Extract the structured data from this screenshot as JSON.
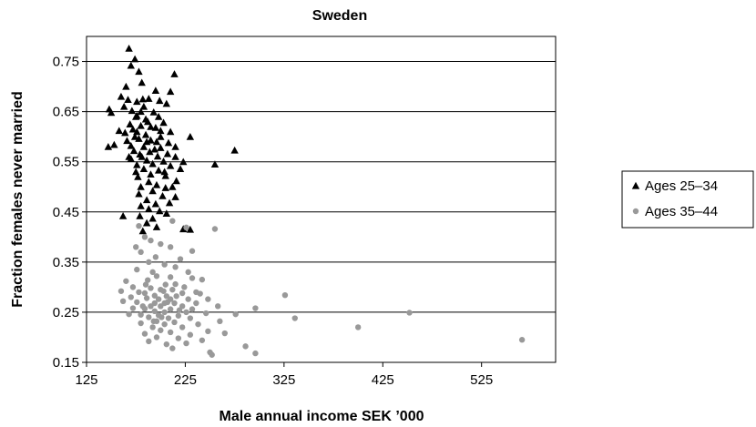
{
  "chart_data": {
    "type": "scatter",
    "title": "Sweden",
    "xlabel": "Male annual income SEK ’000",
    "ylabel": "Fraction females never married",
    "xlim": [
      125,
      600
    ],
    "ylim": [
      0.15,
      0.8
    ],
    "x_ticks": [
      125,
      225,
      325,
      425,
      525
    ],
    "x_tick_labels": [
      "125",
      "225",
      "325",
      "425",
      "525"
    ],
    "y_ticks": [
      0.15,
      0.25,
      0.35,
      0.45,
      0.55,
      0.65,
      0.75
    ],
    "y_tick_labels": [
      "0.15",
      "0.25",
      "0.35",
      "0.45",
      "0.55",
      "0.65",
      "0.75"
    ],
    "grid": "horizontal",
    "legend_position": "right",
    "series": [
      {
        "name": "Ages 25–34",
        "marker": "triangle",
        "color": "#000000",
        "points": [
          [
            168,
            0.776
          ],
          [
            174,
            0.755
          ],
          [
            170,
            0.742
          ],
          [
            178,
            0.73
          ],
          [
            214,
            0.725
          ],
          [
            165,
            0.7
          ],
          [
            181,
            0.708
          ],
          [
            195,
            0.692
          ],
          [
            210,
            0.69
          ],
          [
            160,
            0.68
          ],
          [
            167,
            0.674
          ],
          [
            176,
            0.67
          ],
          [
            188,
            0.676
          ],
          [
            199,
            0.672
          ],
          [
            206,
            0.666
          ],
          [
            183,
            0.66
          ],
          [
            171,
            0.652
          ],
          [
            193,
            0.649
          ],
          [
            148,
            0.655
          ],
          [
            150,
            0.648
          ],
          [
            176,
            0.642
          ],
          [
            198,
            0.64
          ],
          [
            187,
            0.63
          ],
          [
            169,
            0.625
          ],
          [
            203,
            0.628
          ],
          [
            180,
            0.622
          ],
          [
            195,
            0.618
          ],
          [
            158,
            0.612
          ],
          [
            164,
            0.608
          ],
          [
            185,
            0.604
          ],
          [
            174,
            0.6
          ],
          [
            200,
            0.6
          ],
          [
            210,
            0.61
          ],
          [
            230,
            0.6
          ],
          [
            166,
            0.592
          ],
          [
            178,
            0.596
          ],
          [
            190,
            0.593
          ],
          [
            196,
            0.59
          ],
          [
            208,
            0.588
          ],
          [
            153,
            0.584
          ],
          [
            147,
            0.58
          ],
          [
            170,
            0.582
          ],
          [
            183,
            0.58
          ],
          [
            200,
            0.578
          ],
          [
            215,
            0.58
          ],
          [
            275,
            0.573
          ],
          [
            173,
            0.572
          ],
          [
            189,
            0.57
          ],
          [
            207,
            0.566
          ],
          [
            179,
            0.565
          ],
          [
            197,
            0.561
          ],
          [
            215,
            0.56
          ],
          [
            170,
            0.556
          ],
          [
            186,
            0.553
          ],
          [
            203,
            0.551
          ],
          [
            223,
            0.55
          ],
          [
            192,
            0.546
          ],
          [
            176,
            0.544
          ],
          [
            210,
            0.542
          ],
          [
            255,
            0.545
          ],
          [
            183,
            0.536
          ],
          [
            198,
            0.533
          ],
          [
            220,
            0.536
          ],
          [
            190,
            0.525
          ],
          [
            205,
            0.522
          ],
          [
            177,
            0.52
          ],
          [
            188,
            0.51
          ],
          [
            216,
            0.512
          ],
          [
            196,
            0.504
          ],
          [
            180,
            0.5
          ],
          [
            205,
            0.498
          ],
          [
            192,
            0.492
          ],
          [
            178,
            0.486
          ],
          [
            202,
            0.482
          ],
          [
            215,
            0.48
          ],
          [
            186,
            0.474
          ],
          [
            195,
            0.466
          ],
          [
            209,
            0.468
          ],
          [
            180,
            0.462
          ],
          [
            188,
            0.456
          ],
          [
            199,
            0.452
          ],
          [
            206,
            0.447
          ],
          [
            162,
            0.442
          ],
          [
            179,
            0.442
          ],
          [
            192,
            0.437
          ],
          [
            186,
            0.428
          ],
          [
            196,
            0.42
          ],
          [
            223,
            0.416
          ],
          [
            182,
            0.412
          ],
          [
            230,
            0.415
          ],
          [
            175,
            0.64
          ],
          [
            180,
            0.65
          ],
          [
            185,
            0.635
          ],
          [
            190,
            0.62
          ],
          [
            172,
            0.615
          ],
          [
            200,
            0.612
          ],
          [
            186,
            0.59
          ],
          [
            194,
            0.575
          ],
          [
            181,
            0.56
          ],
          [
            204,
            0.53
          ],
          [
            212,
            0.5
          ],
          [
            175,
            0.53
          ],
          [
            168,
            0.56
          ],
          [
            176,
            0.61
          ],
          [
            182,
            0.675
          ],
          [
            163,
            0.66
          ]
        ]
      },
      {
        "name": "Ages 35–44",
        "marker": "circle",
        "color": "#999999",
        "points": [
          [
            178,
            0.422
          ],
          [
            212,
            0.432
          ],
          [
            255,
            0.416
          ],
          [
            226,
            0.419
          ],
          [
            184,
            0.4
          ],
          [
            190,
            0.393
          ],
          [
            200,
            0.386
          ],
          [
            210,
            0.38
          ],
          [
            232,
            0.372
          ],
          [
            175,
            0.38
          ],
          [
            180,
            0.37
          ],
          [
            195,
            0.36
          ],
          [
            188,
            0.35
          ],
          [
            204,
            0.345
          ],
          [
            215,
            0.34
          ],
          [
            220,
            0.356
          ],
          [
            176,
            0.335
          ],
          [
            192,
            0.33
          ],
          [
            228,
            0.33
          ],
          [
            196,
            0.322
          ],
          [
            210,
            0.32
          ],
          [
            232,
            0.318
          ],
          [
            242,
            0.315
          ],
          [
            165,
            0.312
          ],
          [
            185,
            0.305
          ],
          [
            205,
            0.305
          ],
          [
            172,
            0.3
          ],
          [
            190,
            0.298
          ],
          [
            200,
            0.295
          ],
          [
            212,
            0.295
          ],
          [
            160,
            0.292
          ],
          [
            178,
            0.29
          ],
          [
            184,
            0.288
          ],
          [
            222,
            0.288
          ],
          [
            240,
            0.287
          ],
          [
            194,
            0.283
          ],
          [
            206,
            0.282
          ],
          [
            216,
            0.282
          ],
          [
            170,
            0.28
          ],
          [
            326,
            0.284
          ],
          [
            186,
            0.278
          ],
          [
            198,
            0.276
          ],
          [
            210,
            0.276
          ],
          [
            228,
            0.276
          ],
          [
            248,
            0.276
          ],
          [
            162,
            0.272
          ],
          [
            176,
            0.27
          ],
          [
            194,
            0.268
          ],
          [
            204,
            0.268
          ],
          [
            214,
            0.268
          ],
          [
            236,
            0.268
          ],
          [
            190,
            0.262
          ],
          [
            200,
            0.262
          ],
          [
            222,
            0.262
          ],
          [
            258,
            0.262
          ],
          [
            172,
            0.258
          ],
          [
            184,
            0.257
          ],
          [
            210,
            0.256
          ],
          [
            232,
            0.256
          ],
          [
            296,
            0.258
          ],
          [
            194,
            0.252
          ],
          [
            204,
            0.25
          ],
          [
            226,
            0.25
          ],
          [
            246,
            0.248
          ],
          [
            452,
            0.249
          ],
          [
            168,
            0.246
          ],
          [
            180,
            0.245
          ],
          [
            198,
            0.244
          ],
          [
            218,
            0.243
          ],
          [
            276,
            0.246
          ],
          [
            188,
            0.24
          ],
          [
            208,
            0.238
          ],
          [
            230,
            0.238
          ],
          [
            336,
            0.238
          ],
          [
            196,
            0.232
          ],
          [
            214,
            0.23
          ],
          [
            260,
            0.232
          ],
          [
            180,
            0.228
          ],
          [
            204,
            0.226
          ],
          [
            238,
            0.226
          ],
          [
            192,
            0.22
          ],
          [
            222,
            0.22
          ],
          [
            400,
            0.22
          ],
          [
            200,
            0.214
          ],
          [
            210,
            0.21
          ],
          [
            248,
            0.212
          ],
          [
            184,
            0.207
          ],
          [
            230,
            0.205
          ],
          [
            265,
            0.208
          ],
          [
            196,
            0.2
          ],
          [
            218,
            0.198
          ],
          [
            188,
            0.192
          ],
          [
            242,
            0.194
          ],
          [
            566,
            0.195
          ],
          [
            206,
            0.186
          ],
          [
            226,
            0.188
          ],
          [
            286,
            0.182
          ],
          [
            212,
            0.178
          ],
          [
            250,
            0.17
          ],
          [
            296,
            0.168
          ],
          [
            252,
            0.165
          ],
          [
            193,
            0.232
          ],
          [
            203,
            0.292
          ],
          [
            215,
            0.306
          ],
          [
            182,
            0.262
          ],
          [
            219,
            0.254
          ],
          [
            201,
            0.24
          ],
          [
            207,
            0.27
          ],
          [
            187,
            0.314
          ],
          [
            224,
            0.3
          ],
          [
            236,
            0.29
          ]
        ]
      }
    ]
  }
}
